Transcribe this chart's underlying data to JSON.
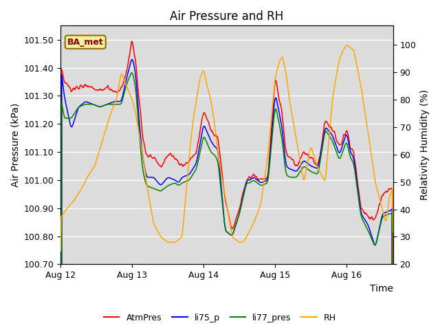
{
  "title": "Air Pressure and RH",
  "xlabel": "Time",
  "ylabel_left": "Air Pressure (kPa)",
  "ylabel_right": "Relativity Humidity (%)",
  "ylim_left": [
    100.7,
    101.55
  ],
  "ylim_right": [
    20,
    107
  ],
  "yticks_left": [
    100.7,
    100.8,
    100.9,
    101.0,
    101.1,
    101.2,
    101.3,
    101.4,
    101.5
  ],
  "yticks_right": [
    20,
    30,
    40,
    50,
    60,
    70,
    80,
    90,
    100
  ],
  "xtick_positions": [
    0,
    1,
    2,
    3,
    4
  ],
  "xtick_labels": [
    "Aug 12",
    "Aug 13",
    "Aug 14",
    "Aug 15",
    "Aug 16"
  ],
  "legend_labels": [
    "AtmPres",
    "li75_p",
    "li77_pres",
    "RH"
  ],
  "legend_colors": [
    "red",
    "blue",
    "green",
    "orange"
  ],
  "annotation_text": "BA_met",
  "background_color": "#dcdcdc",
  "title_fontsize": 12,
  "label_fontsize": 10,
  "tick_fontsize": 9
}
